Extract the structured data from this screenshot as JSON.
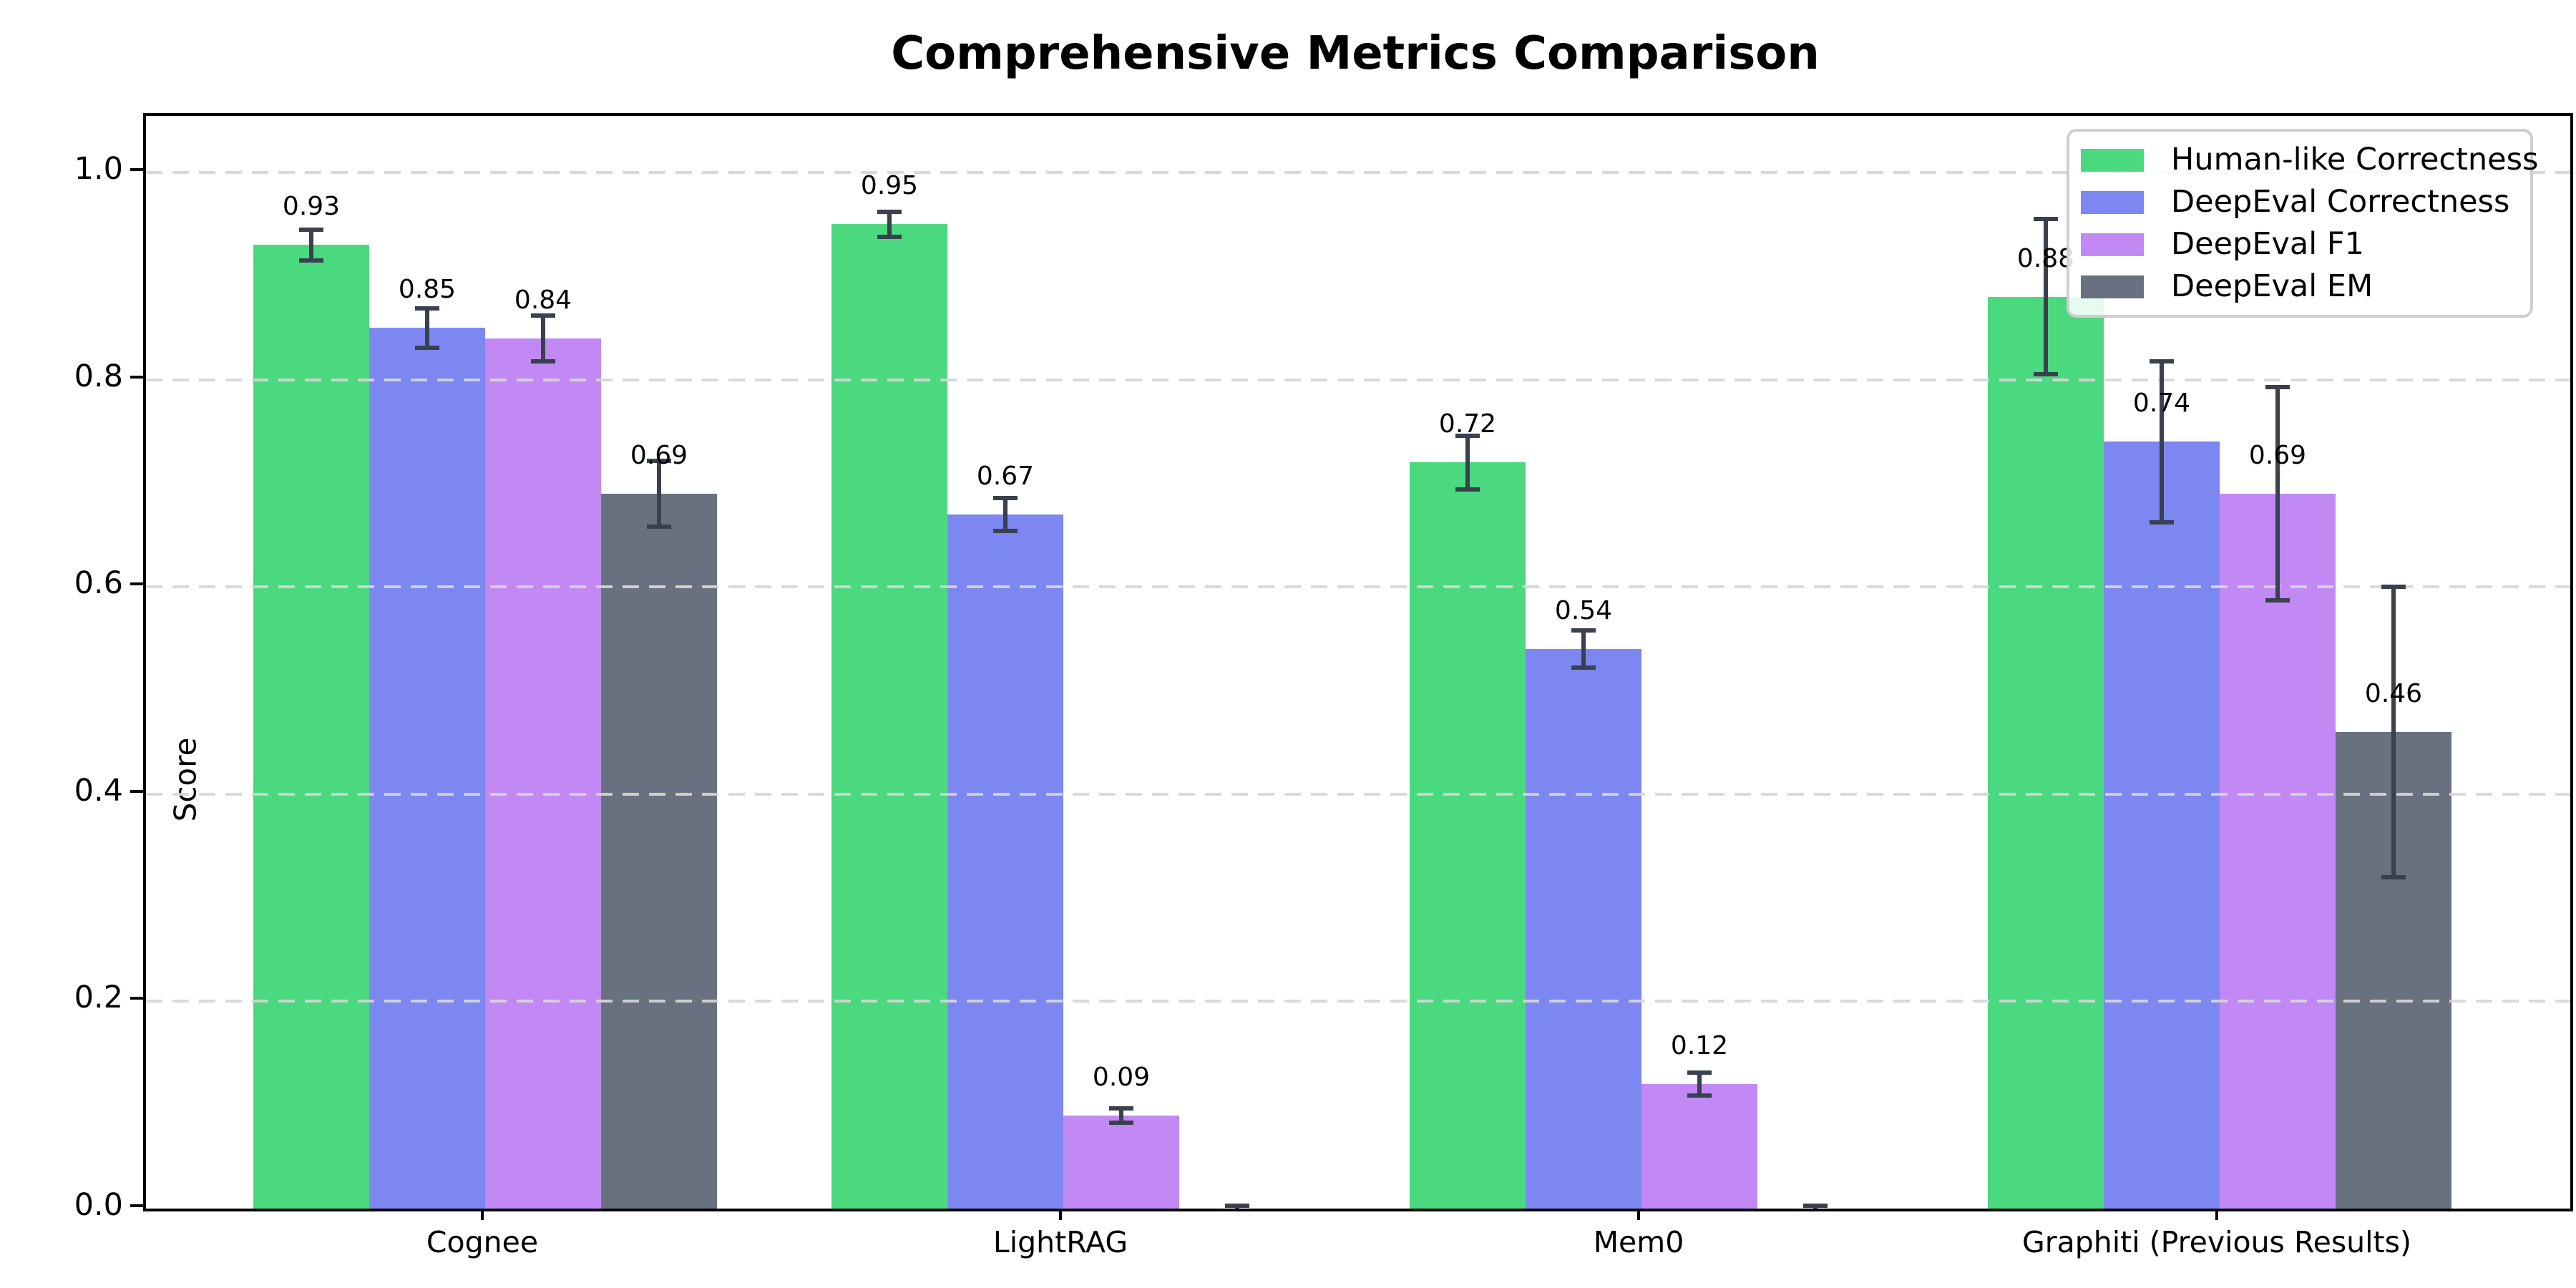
{
  "chart_data": {
    "type": "bar",
    "title": "Comprehensive Metrics Comparison",
    "ylabel": "Score",
    "xlabel": "",
    "categories": [
      "Cognee",
      "LightRAG",
      "Mem0",
      "Graphiti (Previous Results)"
    ],
    "series": [
      {
        "name": "Human-like Correctness",
        "color": "#4BD97F",
        "values": [
          0.93,
          0.95,
          0.72,
          0.88
        ],
        "errors": [
          0.015,
          0.012,
          0.026,
          0.075
        ],
        "labels": [
          "0.93",
          "0.95",
          "0.72",
          "0.88"
        ]
      },
      {
        "name": "DeepEval Correctness",
        "color": "#7C87F2",
        "values": [
          0.85,
          0.67,
          0.54,
          0.74
        ],
        "errors": [
          0.019,
          0.016,
          0.018,
          0.078
        ],
        "labels": [
          "0.85",
          "0.67",
          "0.54",
          "0.74"
        ]
      },
      {
        "name": "DeepEval F1",
        "color": "#C289F5",
        "values": [
          0.84,
          0.09,
          0.12,
          0.69
        ],
        "errors": [
          0.022,
          0.007,
          0.011,
          0.103
        ],
        "labels": [
          "0.84",
          "0.09",
          "0.12",
          "0.69"
        ]
      },
      {
        "name": "DeepEval EM",
        "color": "#697180",
        "values": [
          0.69,
          0.0,
          0.0,
          0.46
        ],
        "errors": [
          0.032,
          0.003,
          0.003,
          0.14
        ],
        "labels": [
          "0.69",
          null,
          null,
          "0.46"
        ]
      }
    ],
    "yticks": [
      "0.0",
      "0.2",
      "0.4",
      "0.6",
      "0.8",
      "1.0"
    ],
    "ylim": [
      0.0,
      1.054
    ],
    "grid": "horizontal dashed",
    "legend_position": "upper right",
    "colors": {
      "error_bar": "#39404E",
      "grid": "#d6d6d6",
      "axis": "#000000",
      "legend_border": "#cfcfcf",
      "background": "#ffffff"
    }
  }
}
